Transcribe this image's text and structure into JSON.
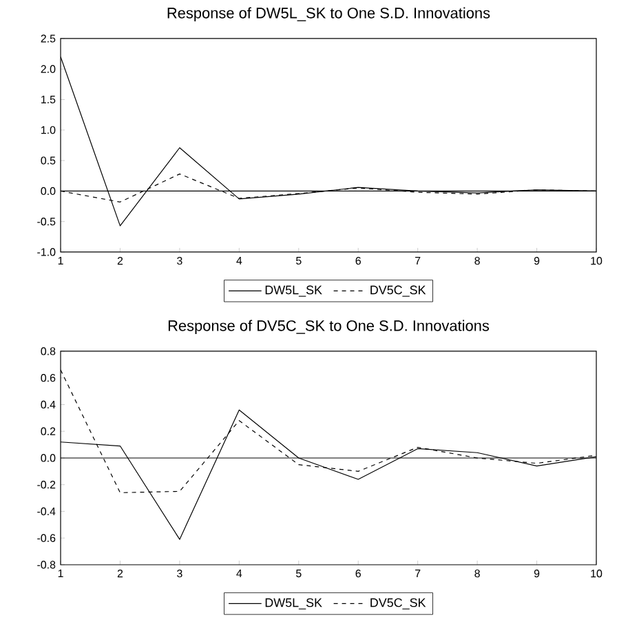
{
  "chart_data": [
    {
      "type": "line",
      "title": "Response of DW5L_SK to One S.D. Innovations",
      "x": [
        1,
        2,
        3,
        4,
        5,
        6,
        7,
        8,
        9,
        10
      ],
      "xlim": [
        1,
        10
      ],
      "xticks": [
        1,
        2,
        3,
        4,
        5,
        6,
        7,
        8,
        9,
        10
      ],
      "ylim": [
        -1.0,
        2.5
      ],
      "yticks": [
        {
          "value": -1.0,
          "label": "-1.0"
        },
        {
          "value": -0.5,
          "label": "-0.5"
        },
        {
          "value": 0.0,
          "label": "0.0"
        },
        {
          "value": 0.5,
          "label": "0.5"
        },
        {
          "value": 1.0,
          "label": "1.0"
        },
        {
          "value": 1.5,
          "label": "1.5"
        },
        {
          "value": 2.0,
          "label": "2.0"
        },
        {
          "value": 2.5,
          "label": "2.5"
        }
      ],
      "legend": "bottom",
      "ref_lines": [
        {
          "axis": "y",
          "value": 0,
          "color": "#000000"
        }
      ],
      "series": [
        {
          "name": "DW5L_SK",
          "color": "#000000",
          "line_style": "solid",
          "values": [
            2.2,
            -0.57,
            0.71,
            -0.13,
            -0.05,
            0.06,
            0.0,
            -0.03,
            0.02,
            0.0
          ]
        },
        {
          "name": "DV5C_SK",
          "color": "#000000",
          "line_style": "dashed",
          "values": [
            0.0,
            -0.18,
            0.28,
            -0.12,
            -0.04,
            0.05,
            -0.02,
            -0.05,
            0.02,
            0.0
          ]
        }
      ]
    },
    {
      "type": "line",
      "title": "Response of DV5C_SK to One S.D. Innovations",
      "x": [
        1,
        2,
        3,
        4,
        5,
        6,
        7,
        8,
        9,
        10
      ],
      "xlim": [
        1,
        10
      ],
      "xticks": [
        1,
        2,
        3,
        4,
        5,
        6,
        7,
        8,
        9,
        10
      ],
      "ylim": [
        -0.8,
        0.8
      ],
      "yticks": [
        {
          "value": -0.8,
          "label": "-0.8"
        },
        {
          "value": -0.6,
          "label": "-0.6"
        },
        {
          "value": -0.4,
          "label": "-0.4"
        },
        {
          "value": -0.2,
          "label": "-0.2"
        },
        {
          "value": 0.0,
          "label": "0.0"
        },
        {
          "value": 0.2,
          "label": "0.2"
        },
        {
          "value": 0.4,
          "label": "0.4"
        },
        {
          "value": 0.6,
          "label": "0.6"
        },
        {
          "value": 0.8,
          "label": "0.8"
        }
      ],
      "legend": "bottom",
      "ref_lines": [
        {
          "axis": "y",
          "value": 0,
          "color": "#000000"
        }
      ],
      "series": [
        {
          "name": "DW5L_SK",
          "color": "#000000",
          "line_style": "solid",
          "values": [
            0.12,
            0.09,
            -0.61,
            0.36,
            0.0,
            -0.16,
            0.07,
            0.04,
            -0.06,
            0.01
          ]
        },
        {
          "name": "DV5C_SK",
          "color": "#000000",
          "line_style": "dashed",
          "values": [
            0.66,
            -0.26,
            -0.25,
            0.28,
            -0.05,
            -0.1,
            0.08,
            0.0,
            -0.04,
            0.02
          ]
        }
      ]
    }
  ]
}
